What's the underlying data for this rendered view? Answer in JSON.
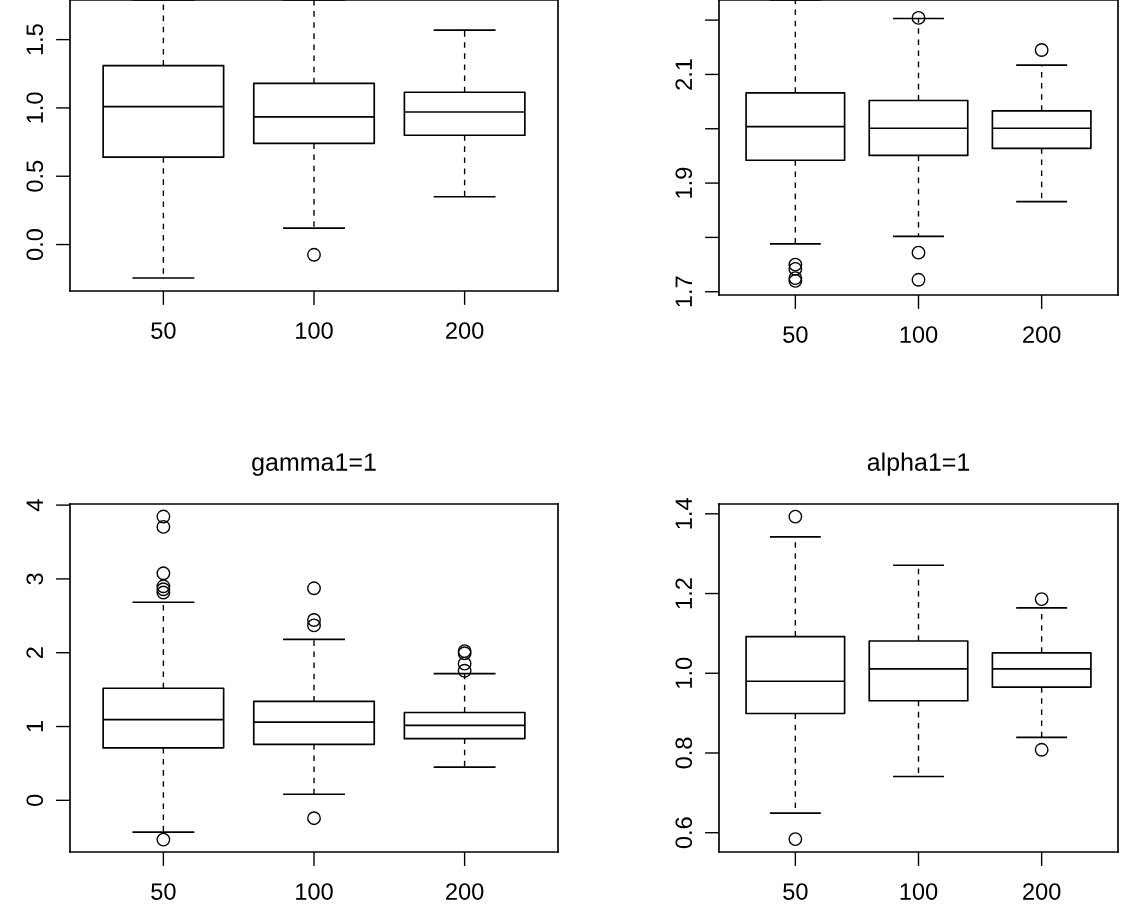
{
  "chart_data": [
    {
      "type": "box",
      "categories": [
        "50",
        "100",
        "200"
      ],
      "ylim": [
        -0.34,
        1.79
      ],
      "yticks": [
        {
          "value": 0.0,
          "label": "0.0"
        },
        0.5,
        {
          "value": 1.0,
          "label": "1.0"
        },
        1.5
      ],
      "boxes": [
        {
          "low": -0.245,
          "q1": 0.64,
          "median": 1.01,
          "q3": 1.31,
          "high": 1.79
        },
        {
          "low": 0.12,
          "q1": 0.74,
          "median": 0.935,
          "q3": 1.18,
          "high": 1.79,
          "outliers": [
            -0.075
          ]
        },
        {
          "low": 0.35,
          "q1": 0.8,
          "median": 0.97,
          "q3": 1.115,
          "high": 1.57
        }
      ]
    },
    {
      "type": "box",
      "categories": [
        "50",
        "100",
        "200"
      ],
      "ylim": [
        1.694,
        2.237
      ],
      "yticks": [
        1.7,
        {
          "value": 1.8,
          "label": null
        },
        1.9,
        {
          "value": 2.0,
          "label": null
        },
        2.1,
        {
          "value": 2.2,
          "label": null
        }
      ],
      "boxes": [
        {
          "low": 1.788,
          "q1": 1.942,
          "median": 2.004,
          "q3": 2.066,
          "high": 2.237,
          "outliers": [
            1.75,
            1.742,
            1.725,
            1.72
          ]
        },
        {
          "low": 1.802,
          "q1": 1.951,
          "median": 2.001,
          "q3": 2.052,
          "high": 2.203,
          "outliers": [
            2.204,
            1.772,
            1.722
          ]
        },
        {
          "low": 1.866,
          "q1": 1.964,
          "median": 2.001,
          "q3": 2.033,
          "high": 2.117,
          "outliers": [
            2.145
          ]
        }
      ]
    },
    {
      "type": "box",
      "title": "gamma1=1",
      "categories": [
        "50",
        "100",
        "200"
      ],
      "ylim": [
        -0.7,
        4.015
      ],
      "yticks": [
        0,
        1,
        2,
        3,
        4
      ],
      "boxes": [
        {
          "low": -0.43,
          "q1": 0.711,
          "median": 1.093,
          "q3": 1.519,
          "high": 2.684,
          "outliers": [
            3.845,
            3.705,
            3.076,
            2.9,
            2.86,
            2.815,
            -0.532
          ]
        },
        {
          "low": 0.082,
          "q1": 0.759,
          "median": 1.059,
          "q3": 1.34,
          "high": 2.181,
          "outliers": [
            2.873,
            2.443,
            2.37,
            -0.242
          ]
        },
        {
          "low": 0.45,
          "q1": 0.837,
          "median": 1.016,
          "q3": 1.19,
          "high": 1.717,
          "outliers": [
            2.022,
            1.993,
            1.852,
            1.756
          ]
        }
      ]
    },
    {
      "type": "box",
      "title": "alpha1=1",
      "categories": [
        "50",
        "100",
        "200"
      ],
      "ylim": [
        0.5516,
        1.4246
      ],
      "yticks": [
        0.6,
        0.8,
        {
          "value": 1.0,
          "label": "1.0"
        },
        1.2,
        1.4
      ],
      "boxes": [
        {
          "low": 0.649,
          "q1": 0.899,
          "median": 0.98,
          "q3": 1.092,
          "high": 1.342,
          "outliers": [
            1.393,
            0.584
          ]
        },
        {
          "low": 0.741,
          "q1": 0.931,
          "median": 1.011,
          "q3": 1.081,
          "high": 1.271
        },
        {
          "low": 0.839,
          "q1": 0.965,
          "median": 1.011,
          "q3": 1.051,
          "high": 1.164,
          "outliers": [
            1.186,
            0.808
          ]
        }
      ]
    }
  ]
}
